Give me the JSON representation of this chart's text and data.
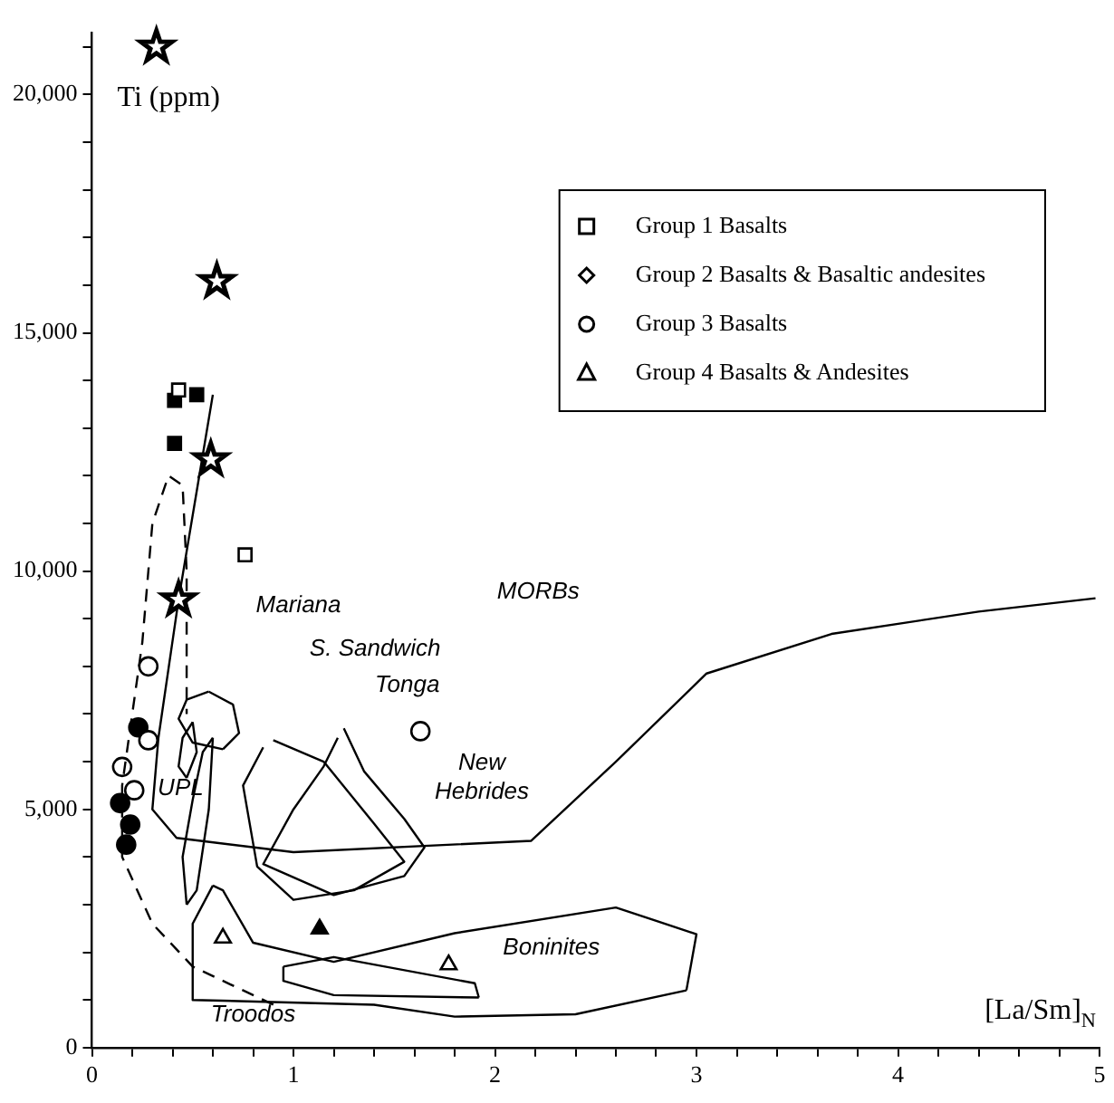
{
  "chart_data": {
    "type": "scatter",
    "xlabel": "[La/Sm]$_{N}$",
    "ylabel": "Ti (ppm)",
    "xlim": [
      0,
      5
    ],
    "ylim": [
      0,
      21300
    ],
    "xticks": [
      0,
      {
        "value": 0.2,
        "label": null
      },
      {
        "value": 0.4,
        "label": null
      },
      {
        "value": 0.6,
        "label": null
      },
      {
        "value": 0.8,
        "label": null
      },
      1,
      {
        "value": 1.2,
        "label": null
      },
      {
        "value": 1.4,
        "label": null
      },
      {
        "value": 1.6,
        "label": null
      },
      {
        "value": 1.8,
        "label": null
      },
      2,
      {
        "value": 2.2,
        "label": null
      },
      {
        "value": 2.4,
        "label": null
      },
      {
        "value": 2.6,
        "label": null
      },
      {
        "value": 2.8,
        "label": null
      },
      3,
      {
        "value": 3.2,
        "label": null
      },
      {
        "value": 3.4,
        "label": null
      },
      {
        "value": 3.6,
        "label": null
      },
      {
        "value": 3.8,
        "label": null
      },
      4,
      {
        "value": 4.2,
        "label": null
      },
      {
        "value": 4.4,
        "label": null
      },
      {
        "value": 4.6,
        "label": null
      },
      {
        "value": 4.8,
        "label": null
      },
      5
    ],
    "yticks": [
      0,
      {
        "value": 1000,
        "label": null
      },
      {
        "value": 2000,
        "label": null
      },
      {
        "value": 3000,
        "label": null
      },
      {
        "value": 4000,
        "label": null
      },
      {
        "value": 5000,
        "label": "5,000"
      },
      {
        "value": 6000,
        "label": null
      },
      {
        "value": 7000,
        "label": null
      },
      {
        "value": 8000,
        "label": null
      },
      {
        "value": 9000,
        "label": null
      },
      {
        "value": 10000,
        "label": "10,000"
      },
      {
        "value": 11000,
        "label": null
      },
      {
        "value": 12000,
        "label": null
      },
      {
        "value": 13000,
        "label": null
      },
      {
        "value": 14000,
        "label": null
      },
      {
        "value": 15000,
        "label": "15,000"
      },
      {
        "value": 16000,
        "label": null
      },
      {
        "value": 17000,
        "label": null
      },
      {
        "value": 18000,
        "label": null
      },
      {
        "value": 19000,
        "label": null
      },
      {
        "value": 20000,
        "label": "20,000"
      },
      {
        "value": 21000,
        "label": null
      }
    ],
    "grid": false,
    "legend": "top right",
    "series": [
      {
        "type": "line",
        "marker": "none",
        "line_style": "solid",
        "color": "#000000",
        "x": [
          0.6,
          0.43,
          0.33,
          0.3,
          0.42,
          1.0,
          2.18,
          2.6,
          3.05,
          3.67,
          4.4,
          4.98
        ],
        "values": [
          13700,
          9400,
          6500,
          5000,
          4400,
          4100,
          4340,
          6000,
          7850,
          8680,
          9150,
          9430
        ]
      },
      {
        "type": "line",
        "marker": "none",
        "line_style": "dashed",
        "color": "#000000",
        "x": [
          0.9,
          0.5,
          0.3,
          0.15,
          0.15,
          0.25,
          0.3,
          0.38,
          0.45,
          0.47,
          0.47
        ],
        "values": [
          900,
          1700,
          2600,
          4000,
          5500,
          8500,
          11000,
          12000,
          11800,
          10000,
          7000
        ]
      },
      {
        "type": "line",
        "marker": "none",
        "line_style": "solid",
        "color": "#000000",
        "x": [
          0.58,
          0.7,
          0.73,
          0.65
        ],
        "values": [
          7470,
          7200,
          6600,
          6260
        ]
      },
      {
        "type": "line",
        "marker": "none",
        "line_style": "solid",
        "color": "#000000",
        "x": [
          0.65,
          0.5,
          0.43,
          0.47,
          0.58
        ],
        "values": [
          6260,
          6400,
          6900,
          7300,
          7470
        ]
      },
      {
        "type": "line",
        "marker": "none",
        "line_style": "solid",
        "color": "#000000",
        "x": [
          0.5,
          0.52,
          0.47
        ],
        "values": [
          6830,
          6200,
          5660
        ]
      },
      {
        "type": "line",
        "marker": "none",
        "line_style": "solid",
        "color": "#000000",
        "x": [
          0.47,
          0.43,
          0.45,
          0.5
        ],
        "values": [
          5660,
          5900,
          6500,
          6830
        ]
      },
      {
        "type": "line",
        "marker": "none",
        "line_style": "solid",
        "color": "#000000",
        "x": [
          0.6,
          0.58,
          0.52,
          0.47
        ],
        "values": [
          6500,
          5000,
          3300,
          3000
        ]
      },
      {
        "type": "line",
        "marker": "none",
        "line_style": "solid",
        "color": "#000000",
        "x": [
          0.47,
          0.45,
          0.5,
          0.55,
          0.6
        ],
        "values": [
          3000,
          4000,
          5200,
          6200,
          6500
        ]
      },
      {
        "type": "line",
        "marker": "none",
        "line_style": "solid",
        "color": "#000000",
        "x": [
          0.9,
          1.15,
          1.4,
          1.55,
          1.3,
          1.0,
          0.82,
          0.75,
          0.85
        ],
        "values": [
          6450,
          6000,
          4700,
          3900,
          3300,
          3100,
          3800,
          5500,
          6300
        ]
      },
      {
        "type": "line",
        "marker": "none",
        "line_style": "solid",
        "color": "#000000",
        "x": [
          1.25,
          1.35,
          1.55,
          1.65,
          1.55,
          1.2,
          0.85,
          1.0,
          1.15,
          1.22
        ],
        "values": [
          6700,
          5800,
          4800,
          4200,
          3600,
          3200,
          3850,
          5000,
          5900,
          6500
        ]
      },
      {
        "type": "line",
        "marker": "none",
        "line_style": "solid",
        "color": "#000000",
        "x": [
          0.6,
          0.5,
          0.5,
          1.4,
          1.8,
          2.4,
          2.95
        ],
        "values": [
          3400,
          2600,
          1000,
          900,
          650,
          700,
          1200
        ]
      },
      {
        "type": "line",
        "marker": "none",
        "line_style": "solid",
        "color": "#000000",
        "x": [
          2.95,
          3.0,
          2.6,
          1.8,
          1.2,
          0.8,
          0.65,
          0.6
        ],
        "values": [
          1200,
          2380,
          2940,
          2400,
          1800,
          2200,
          3300,
          3400
        ]
      },
      {
        "type": "line",
        "marker": "none",
        "line_style": "solid",
        "color": "#000000",
        "x": [
          0.95,
          1.2,
          1.9,
          1.92
        ],
        "values": [
          1700,
          1900,
          1350,
          1050
        ]
      },
      {
        "type": "line",
        "marker": "none",
        "line_style": "solid",
        "color": "#000000",
        "x": [
          1.92,
          1.2,
          0.95,
          0.95
        ],
        "values": [
          1050,
          1100,
          1400,
          1700
        ]
      },
      {
        "name": "Group 1 Basalts",
        "marker": "square",
        "color": "#000000",
        "x": [
          0.43,
          0.76
        ],
        "values": [
          13800,
          10340
        ]
      },
      {
        "name": "Group 2 Basalts & Basaltic andesites",
        "marker": "diamond",
        "color": "#000000"
      },
      {
        "name": "Group 3 Basalts",
        "marker": "circle",
        "color": "#000000",
        "x": [
          0.28,
          0.28,
          0.15,
          0.21,
          1.63
        ],
        "values": [
          8000,
          6450,
          5890,
          5400,
          6640
        ]
      },
      {
        "name": "Group 4 Basalts & Andesites",
        "marker": "triangle",
        "color": "#000000",
        "x": [
          0.65,
          1.77
        ],
        "values": [
          2300,
          1740
        ]
      },
      {
        "marker": "square",
        "color": "#000000",
        "x": [
          0.41,
          0.52,
          0.41
        ],
        "values": [
          13580,
          13700,
          12680
        ]
      },
      {
        "marker": "circle",
        "color": "#000000",
        "x": [
          0.23,
          0.14,
          0.19,
          0.17
        ],
        "values": [
          6720,
          5130,
          4680,
          4260
        ]
      },
      {
        "marker": "triangle",
        "color": "#000000",
        "x": [
          1.13
        ],
        "values": [
          2490
        ]
      },
      {
        "marker": "star",
        "color": "#000000",
        "x": [
          0.32,
          0.62,
          0.59,
          0.43
        ],
        "values": [
          21000,
          16080,
          12340,
          9400
        ]
      }
    ],
    "annotations": [
      "MORBs",
      "Mariana",
      "S. Sandwich",
      "Tonga",
      "New\nHebrides",
      "UPL",
      "Boninites",
      "Troodos"
    ]
  }
}
